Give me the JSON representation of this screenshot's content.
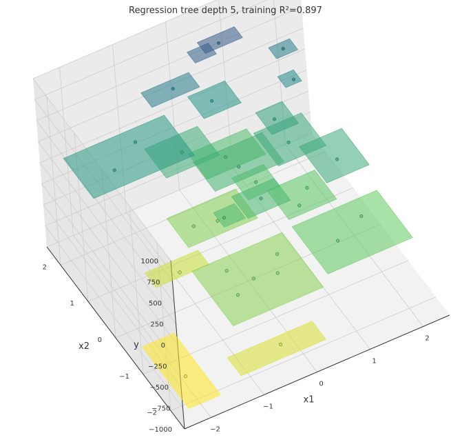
{
  "chart_data": {
    "type": "3d-surface-scatter",
    "title": "Regression tree depth 5, training R²=0.897",
    "xlabel": "x1",
    "ylabel": "x2",
    "zlabel": "y",
    "xlim": [
      -2.5,
      2.5
    ],
    "ylim": [
      -2.5,
      2.5
    ],
    "zlim": [
      -1000,
      1000
    ],
    "x_ticks": [
      -2,
      -1,
      0,
      1,
      2
    ],
    "y_ticks": [
      -2,
      -1,
      0,
      1,
      2
    ],
    "z_ticks": [
      1000,
      750,
      500,
      250,
      0,
      -250,
      -500,
      -750,
      -1000
    ],
    "x_tick_labels": [
      "−2",
      "−1",
      "0",
      "1",
      "2"
    ],
    "y_tick_labels": [
      "−2",
      "−1",
      "0",
      "1",
      "2"
    ],
    "z_tick_labels": [
      "1000",
      "750",
      "500",
      "250",
      "0",
      "−250",
      "−500",
      "−750",
      "−1000"
    ],
    "grid": true,
    "colormap": "viridis-reversed",
    "leaves": [
      {
        "x1": [
          -2.3,
          -1.7
        ],
        "x2": [
          -2.3,
          -0.6
        ],
        "y": -900
      },
      {
        "x1": [
          -1.3,
          0.3
        ],
        "x2": [
          -2.3,
          -1.8
        ],
        "y": -780
      },
      {
        "x1": [
          -1.1,
          0.6
        ],
        "x2": [
          -1.7,
          -0.2
        ],
        "y": -500
      },
      {
        "x1": [
          -1.6,
          -0.6
        ],
        "x2": [
          0.2,
          0.6
        ],
        "y": -730
      },
      {
        "x1": [
          -0.9,
          0.4
        ],
        "x2": [
          0.3,
          1.1
        ],
        "y": -490
      },
      {
        "x1": [
          0.7,
          2.3
        ],
        "x2": [
          -1.7,
          -0.4
        ],
        "y": -370
      },
      {
        "x1": [
          0.7,
          1.6
        ],
        "x2": [
          -0.3,
          0.5
        ],
        "y": -330
      },
      {
        "x1": [
          0.3,
          0.9
        ],
        "x2": [
          0.4,
          1.0
        ],
        "y": -290
      },
      {
        "x1": [
          -0.1,
          1.0
        ],
        "x2": [
          1.1,
          1.8
        ],
        "y": -240
      },
      {
        "x1": [
          -0.4,
          0.0
        ],
        "x2": [
          -0.1,
          0.3
        ],
        "y": -210
      },
      {
        "x1": [
          0.0,
          0.8
        ],
        "x2": [
          -0.2,
          0.4
        ],
        "y": -170
      },
      {
        "x1": [
          -0.2,
          1.1
        ],
        "x2": [
          0.6,
          1.4
        ],
        "y": -140
      },
      {
        "x1": [
          1.4,
          2.2
        ],
        "x2": [
          -0.4,
          0.6
        ],
        "y": -40
      },
      {
        "x1": [
          0.9,
          1.8
        ],
        "x2": [
          0.4,
          1.3
        ],
        "y": -50
      },
      {
        "x1": [
          -0.8,
          0.2
        ],
        "x2": [
          1.2,
          2.0
        ],
        "y": -80
      },
      {
        "x1": [
          1.1,
          1.6
        ],
        "x2": [
          1.0,
          1.6
        ],
        "y": 10
      },
      {
        "x1": [
          -2.2,
          -0.3
        ],
        "x2": [
          1.1,
          2.2
        ],
        "y": 100
      },
      {
        "x1": [
          0.2,
          0.9
        ],
        "x2": [
          1.7,
          2.3
        ],
        "y": 140
      },
      {
        "x1": [
          -0.6,
          0.3
        ],
        "x2": [
          2.0,
          2.4
        ],
        "y": 360
      },
      {
        "x1": [
          1.6,
          1.9
        ],
        "x2": [
          1.4,
          1.7
        ],
        "y": 260
      },
      {
        "x1": [
          1.7,
          2.1
        ],
        "x2": [
          1.9,
          2.2
        ],
        "y": 360
      },
      {
        "x1": [
          0.5,
          1.2
        ],
        "x2": [
          2.1,
          2.4
        ],
        "y": 660
      },
      {
        "x1": [
          0.3,
          0.7
        ],
        "x2": [
          2.1,
          2.4
        ],
        "y": 600
      },
      {
        "x1": [
          1.1,
          1.7
        ],
        "x2": [
          2.3,
          2.5
        ],
        "y": 1280
      }
    ],
    "points": [
      {
        "x1": -2.0,
        "x2": -1.6,
        "y": -900
      },
      {
        "x1": -0.4,
        "x2": -2.0,
        "y": -780
      },
      {
        "x1": -0.7,
        "x2": -1.1,
        "y": -500
      },
      {
        "x1": -0.3,
        "x2": -0.9,
        "y": -500
      },
      {
        "x1": 0.1,
        "x2": -1.0,
        "y": -500
      },
      {
        "x1": -0.6,
        "x2": -0.5,
        "y": -500
      },
      {
        "x1": 0.3,
        "x2": -0.6,
        "y": -500
      },
      {
        "x1": -1.1,
        "x2": 0.3,
        "y": -730
      },
      {
        "x1": -0.6,
        "x2": 0.7,
        "y": -490
      },
      {
        "x1": -0.2,
        "x2": 0.6,
        "y": -490
      },
      {
        "x1": 0.6,
        "x2": 0.7,
        "y": -290
      },
      {
        "x1": 1.2,
        "x2": -1.1,
        "y": -370
      },
      {
        "x1": 1.8,
        "x2": -0.8,
        "y": -370
      },
      {
        "x1": 1.0,
        "x2": -0.1,
        "y": -330
      },
      {
        "x1": 1.3,
        "x2": 0.2,
        "y": -330
      },
      {
        "x1": 0.4,
        "x2": 1.4,
        "y": -240
      },
      {
        "x1": -0.3,
        "x2": 0.1,
        "y": -210
      },
      {
        "x1": 0.4,
        "x2": 0.1,
        "y": -170
      },
      {
        "x1": 0.4,
        "x2": 0.9,
        "y": -140
      },
      {
        "x1": 1.8,
        "x2": 0.0,
        "y": -40
      },
      {
        "x1": 1.3,
        "x2": 0.8,
        "y": -50
      },
      {
        "x1": -0.3,
        "x2": 1.6,
        "y": -80
      },
      {
        "x1": 1.3,
        "x2": 1.3,
        "y": 10
      },
      {
        "x1": -1.6,
        "x2": 1.5,
        "y": 100
      },
      {
        "x1": -1.0,
        "x2": 1.9,
        "y": 100
      },
      {
        "x1": 0.5,
        "x2": 2.0,
        "y": 140
      },
      {
        "x1": -0.1,
        "x2": 2.2,
        "y": 360
      },
      {
        "x1": 1.8,
        "x2": 1.5,
        "y": 260
      },
      {
        "x1": 1.9,
        "x2": 2.05,
        "y": 360
      },
      {
        "x1": 0.8,
        "x2": 2.2,
        "y": 660
      },
      {
        "x1": 1.4,
        "x2": 2.4,
        "y": 1280
      }
    ]
  }
}
